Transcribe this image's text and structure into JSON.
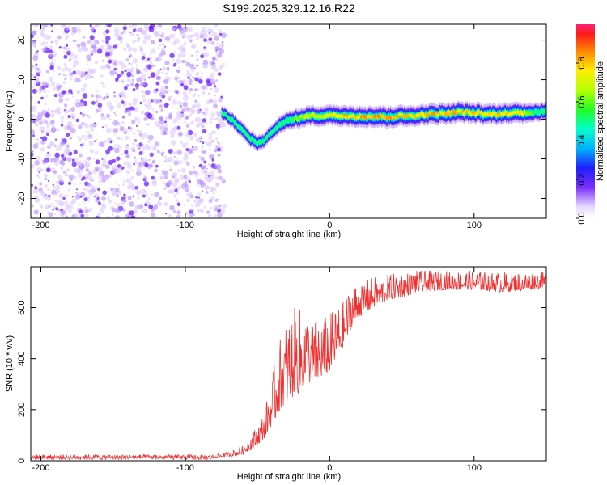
{
  "figure": {
    "title": "S199.2025.329.12.16.R22"
  },
  "chart_data": [
    {
      "type": "heatmap",
      "name": "spectrogram",
      "xlabel": "Height of straight line (km)",
      "ylabel": "Frequency (Hz)",
      "xlim": [
        -207,
        150
      ],
      "ylim": [
        -25,
        24
      ],
      "xticks": [
        -200,
        -100,
        0,
        100
      ],
      "yticks": [
        -20,
        -10,
        0,
        10,
        20
      ],
      "noise_region_x": [
        -207,
        -75
      ],
      "ridge": {
        "x": [
          -75,
          -70,
          -65,
          -60,
          -55,
          -50,
          -45,
          -40,
          -35,
          -30,
          -25,
          -20,
          -15,
          -10,
          -5,
          0,
          10,
          20,
          30,
          40,
          50,
          60,
          70,
          80,
          90,
          100,
          110,
          120,
          130,
          140,
          150
        ],
        "freq": [
          1.5,
          0.5,
          -1,
          -3,
          -5,
          -6,
          -5.5,
          -3,
          -1.5,
          -0.5,
          0,
          0.5,
          0.8,
          1,
          0.8,
          1,
          0.9,
          0.8,
          0.7,
          0.6,
          0.8,
          1,
          1.3,
          1.5,
          1.8,
          1.6,
          1.2,
          1.4,
          1.6,
          1.8,
          2
        ],
        "amplitude": [
          0.15,
          0.2,
          0.3,
          0.35,
          0.35,
          0.3,
          0.25,
          0.3,
          0.45,
          0.55,
          0.6,
          0.65,
          0.7,
          0.7,
          0.72,
          0.75,
          0.78,
          0.8,
          0.82,
          0.85,
          0.8,
          0.75,
          0.8,
          0.82,
          0.8,
          0.78,
          0.75,
          0.78,
          0.78,
          0.6,
          0.5
        ]
      },
      "colorbar": {
        "label": "Normalized spectral amplitude",
        "range": [
          0,
          1
        ],
        "ticks": [
          "0.0",
          "0.2",
          "0.4",
          "0.6",
          "0.8"
        ]
      }
    },
    {
      "type": "line",
      "name": "snr",
      "xlabel": "Height of straight line (km)",
      "ylabel": "SNR (10 * v/v)",
      "xlim": [
        -207,
        150
      ],
      "ylim": [
        0,
        760
      ],
      "xticks": [
        -200,
        -100,
        0,
        100
      ],
      "yticks": [
        0,
        200,
        400,
        600
      ],
      "color": "#ee3333",
      "envelope": {
        "x": [
          -207,
          -80,
          -70,
          -60,
          -50,
          -45,
          -40,
          -35,
          -30,
          -25,
          -20,
          -15,
          -10,
          -5,
          0,
          5,
          10,
          15,
          20,
          30,
          40,
          50,
          60,
          80,
          100,
          120,
          140,
          150
        ],
        "base": [
          12,
          12,
          15,
          25,
          60,
          90,
          140,
          190,
          230,
          250,
          270,
          300,
          310,
          330,
          350,
          400,
          450,
          520,
          560,
          600,
          630,
          640,
          660,
          670,
          670,
          660,
          670,
          680
        ],
        "top": [
          25,
          25,
          35,
          60,
          140,
          200,
          330,
          470,
          550,
          600,
          600,
          580,
          560,
          560,
          580,
          600,
          630,
          690,
          700,
          720,
          730,
          740,
          745,
          745,
          745,
          740,
          740,
          740
        ]
      }
    }
  ]
}
